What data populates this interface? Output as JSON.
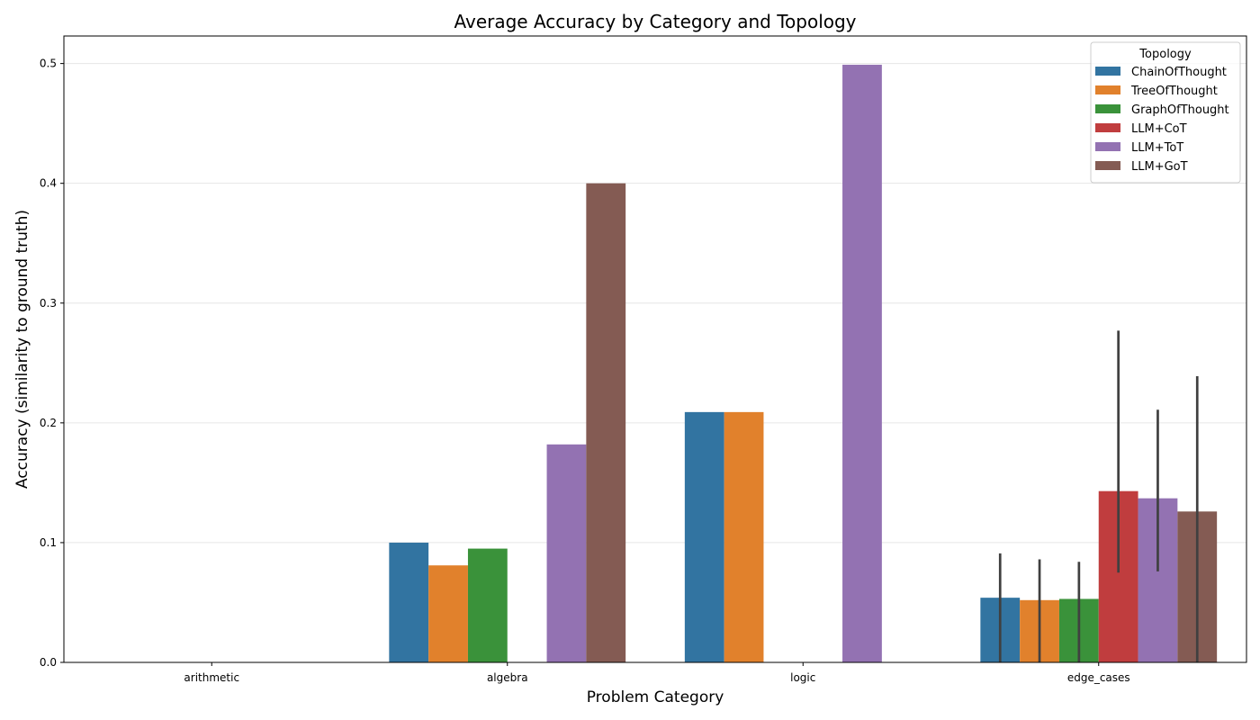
{
  "chart_data": {
    "type": "bar",
    "title": "Average Accuracy by Category and Topology",
    "xlabel": "Problem Category",
    "ylabel": "Accuracy (similarity to ground truth)",
    "ylim": [
      0,
      0.523
    ],
    "yticks": [
      "0.0",
      "0.1",
      "0.2",
      "0.3",
      "0.4",
      "0.5"
    ],
    "grid": "y",
    "legend_title": "Topology",
    "legend_position": "top-right",
    "categories": [
      "arithmetic",
      "algebra",
      "logic",
      "edge_cases"
    ],
    "series": [
      {
        "name": "ChainOfThought",
        "color": "#3274a1",
        "values": [
          null,
          0.1,
          0.209,
          0.054
        ],
        "errors": [
          null,
          null,
          null,
          [
            0.0,
            0.091
          ]
        ]
      },
      {
        "name": "TreeOfThought",
        "color": "#e1812c",
        "values": [
          null,
          0.081,
          0.209,
          0.052
        ],
        "errors": [
          null,
          null,
          null,
          [
            0.0,
            0.086
          ]
        ]
      },
      {
        "name": "GraphOfThought",
        "color": "#3a923a",
        "values": [
          null,
          0.095,
          null,
          0.053
        ],
        "errors": [
          null,
          null,
          null,
          [
            0.0,
            0.084
          ]
        ]
      },
      {
        "name": "LLM+CoT",
        "color": "#c03d3e",
        "values": [
          null,
          null,
          null,
          0.143
        ],
        "errors": [
          null,
          null,
          null,
          [
            0.075,
            0.277
          ]
        ]
      },
      {
        "name": "LLM+ToT",
        "color": "#9372b2",
        "values": [
          null,
          0.182,
          0.499,
          0.137
        ],
        "errors": [
          null,
          null,
          null,
          [
            0.076,
            0.211
          ]
        ]
      },
      {
        "name": "LLM+GoT",
        "color": "#845b53",
        "values": [
          null,
          0.4,
          null,
          0.126
        ],
        "errors": [
          null,
          null,
          null,
          [
            0.0,
            0.239
          ]
        ]
      }
    ]
  }
}
